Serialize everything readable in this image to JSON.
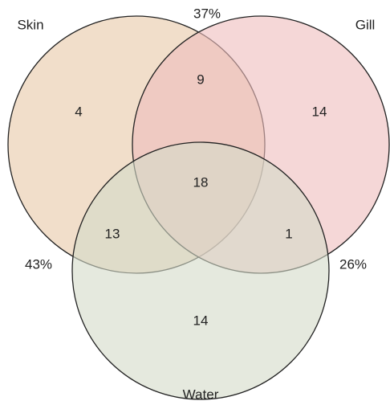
{
  "chart_data": {
    "type": "venn",
    "sets": [
      {
        "name": "Skin",
        "color": "#e8c8a6"
      },
      {
        "name": "Gill",
        "color": "#eebcbc"
      },
      {
        "name": "Water",
        "color": "#d3dbc8"
      }
    ],
    "regions": [
      {
        "sets": [
          0
        ],
        "value": 4
      },
      {
        "sets": [
          0,
          1
        ],
        "value": 9
      },
      {
        "sets": [
          1
        ],
        "value": 14
      },
      {
        "sets": [
          0,
          1,
          2
        ],
        "value": 18
      },
      {
        "sets": [
          0,
          2
        ],
        "value": 13
      },
      {
        "sets": [
          1,
          2
        ],
        "value": 1
      },
      {
        "sets": [
          2
        ],
        "value": 14
      }
    ],
    "annotations": [
      "37%",
      "43%",
      "26%"
    ]
  }
}
